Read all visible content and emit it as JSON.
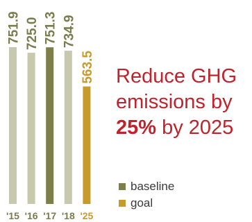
{
  "chart_data": {
    "type": "bar",
    "categories": [
      "'15",
      "'16",
      "'17",
      "'18",
      "'25"
    ],
    "values": [
      751.9,
      725.0,
      751.3,
      734.9,
      563.5
    ],
    "value_labels": [
      "751.9",
      "725.0",
      "751.3",
      "734.9",
      "563.5"
    ],
    "bar_colors": [
      "#c7c8ad",
      "#c7c8ad",
      "#7d7f4b",
      "#c7c8ad",
      "#c79a2c"
    ],
    "label_colors": [
      "#7a7c4e",
      "#7a7c4e",
      "#7a7c4e",
      "#7a7c4e",
      "#c79a2c"
    ],
    "ylim": [
      0,
      751.9
    ],
    "legend": [
      {
        "label": "baseline",
        "color": "#7d7f4b"
      },
      {
        "label": "goal",
        "color": "#c79a2c"
      }
    ]
  },
  "headline": {
    "line1": "Reduce GHG",
    "line2": "emissions by",
    "highlight": "25%",
    "tail": " by 2025"
  }
}
